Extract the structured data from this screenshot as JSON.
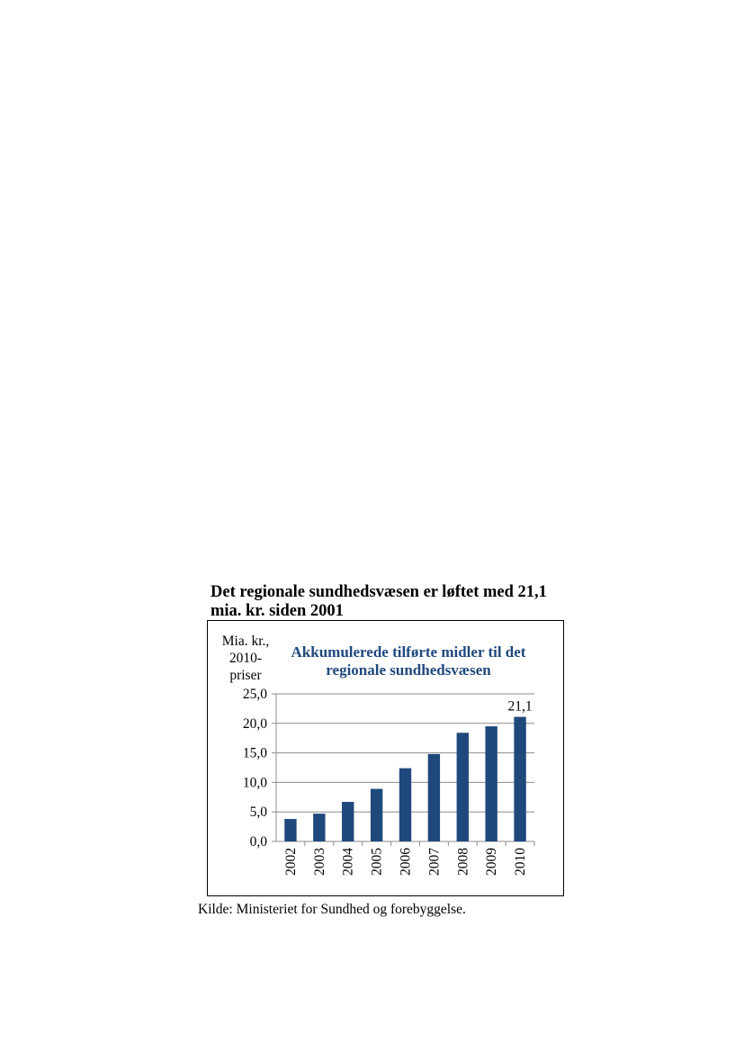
{
  "heading": {
    "line1": "Det regionale sundhedsvæsen er løftet med 21,1",
    "line2": "mia. kr. siden 2001"
  },
  "source": "Kilde: Ministeriet for Sundhed og forebyggelse.",
  "chart_data": {
    "type": "bar",
    "title_lines": [
      "Akkumulerede tilførte midler til det",
      "regionale sundhedsvæsen"
    ],
    "ylabel_lines": [
      "Mia. kr.,",
      "2010-",
      "priser"
    ],
    "xlabel": "",
    "categories": [
      "2002",
      "2003",
      "2004",
      "2005",
      "2006",
      "2007",
      "2008",
      "2009",
      "2010"
    ],
    "values": [
      3.8,
      4.7,
      6.7,
      8.9,
      12.4,
      14.8,
      18.4,
      19.5,
      21.1
    ],
    "ylim": [
      0,
      25
    ],
    "yticks": [
      "0,0",
      "5,0",
      "10,0",
      "15,0",
      "20,0",
      "25,0"
    ],
    "ytick_values": [
      0,
      5,
      10,
      15,
      20,
      25
    ],
    "data_labels": [
      {
        "category": "2010",
        "text": "21,1"
      }
    ],
    "bar_color": "#1f497d",
    "title_color": "#1f497d",
    "grid": "horizontal",
    "legend": "none"
  }
}
